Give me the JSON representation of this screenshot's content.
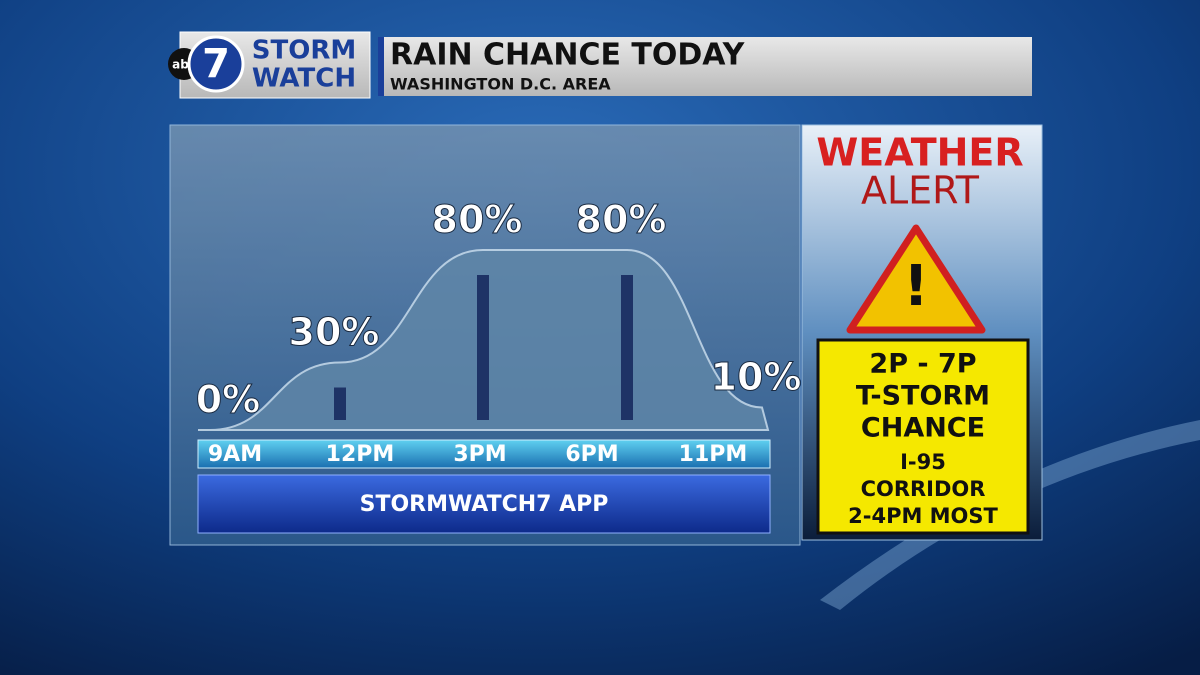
{
  "header": {
    "logo_network": "abc",
    "logo_number": "7",
    "logo_line1": "STORM",
    "logo_line2": "WATCH",
    "title": "RAIN CHANCE TODAY",
    "subtitle": "WASHINGTON D.C. AREA"
  },
  "chart_data": {
    "type": "area",
    "categories": [
      "9AM",
      "12PM",
      "3PM",
      "6PM",
      "11PM"
    ],
    "values": [
      0,
      30,
      80,
      80,
      10
    ],
    "value_labels": [
      "0%",
      "30%",
      "80%",
      "80%",
      "10%"
    ],
    "ylim": [
      0,
      100
    ],
    "color": "#5f86a8",
    "button": "STORMWATCH7 APP"
  },
  "alert": {
    "line1": "WEATHER",
    "line2": "ALERT",
    "box": [
      "2P - 7P",
      "T-STORM",
      "CHANCE",
      "I-95",
      "CORRIDOR",
      "2-4PM MOST"
    ]
  }
}
